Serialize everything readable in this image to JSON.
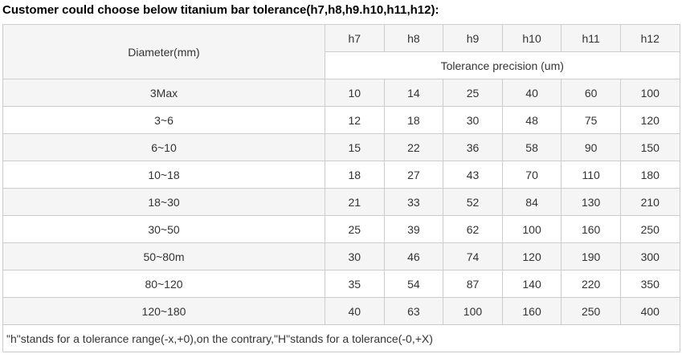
{
  "title": "Customer could choose below titanium bar tolerance(h7,h8,h9.h10,h11,h12):",
  "table": {
    "diameter_header": "Diameter(mm)",
    "tolerance_columns": [
      "h7",
      "h8",
      "h9",
      "h10",
      "h11",
      "h12"
    ],
    "tolerance_subheader": "Tolerance precision (um)",
    "rows": [
      {
        "diameter": "3Max",
        "values": [
          10,
          14,
          25,
          40,
          60,
          100
        ]
      },
      {
        "diameter": "3~6",
        "values": [
          12,
          18,
          30,
          48,
          75,
          120
        ]
      },
      {
        "diameter": "6~10",
        "values": [
          15,
          22,
          36,
          58,
          90,
          150
        ]
      },
      {
        "diameter": "10~18",
        "values": [
          18,
          27,
          43,
          70,
          110,
          180
        ]
      },
      {
        "diameter": "18~30",
        "values": [
          21,
          33,
          52,
          84,
          130,
          210
        ]
      },
      {
        "diameter": "30~50",
        "values": [
          25,
          39,
          62,
          100,
          160,
          250
        ]
      },
      {
        "diameter": "50~80m",
        "values": [
          30,
          46,
          74,
          120,
          190,
          300
        ]
      },
      {
        "diameter": "80~120",
        "values": [
          35,
          54,
          87,
          140,
          220,
          350
        ]
      },
      {
        "diameter": "120~180",
        "values": [
          40,
          63,
          100,
          160,
          250,
          400
        ]
      }
    ],
    "footnote": "\"h\"stands for a tolerance range(-x,+0),on the contrary,\"H\"stands for a tolerance(-0,+X)"
  },
  "colors": {
    "stripe_bg": "#f5f5f5",
    "border": "#cccccc",
    "text": "#333333",
    "title_text": "#000000"
  }
}
